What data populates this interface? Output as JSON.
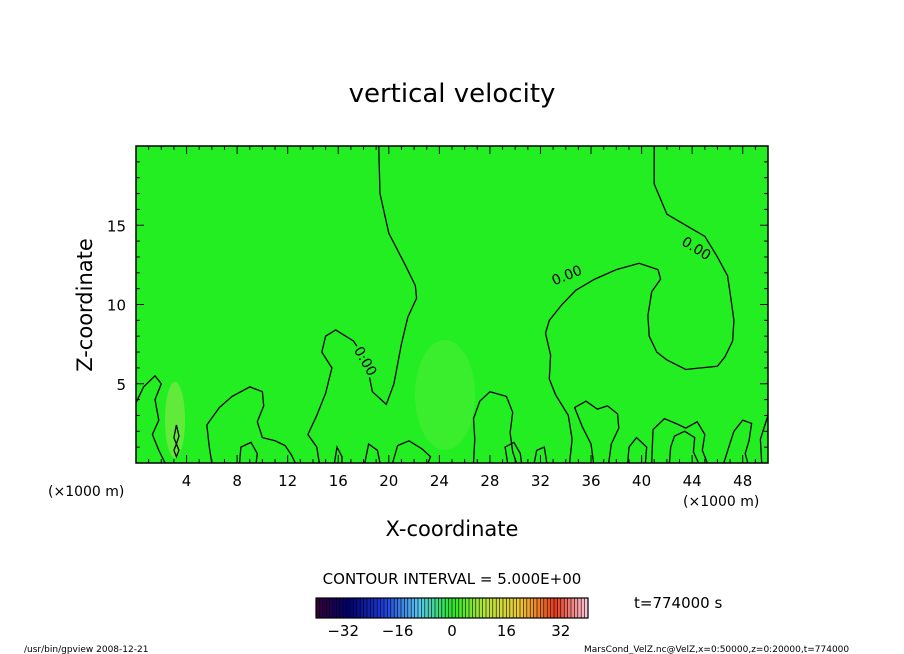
{
  "chart_data": {
    "type": "contour",
    "title": "vertical velocity",
    "xlabel": "X-coordinate",
    "ylabel": "Z-coordinate",
    "x_unit_label": "(×1000 m)",
    "y_unit_label": "(×1000 m)",
    "xlim": [
      0,
      50
    ],
    "ylim": [
      0,
      20
    ],
    "x_ticks": [
      4,
      8,
      12,
      16,
      20,
      24,
      28,
      32,
      36,
      40,
      44,
      48
    ],
    "y_ticks": [
      5,
      10,
      15
    ],
    "fill_color": "#22ee22",
    "contour_labels": [
      {
        "text": "0.00",
        "x": 18.1,
        "y": 6.4,
        "angle": 60
      },
      {
        "text": "0.00",
        "x": 34.1,
        "y": 11.8,
        "angle": -22
      },
      {
        "text": "0.00",
        "x": 44.3,
        "y": 13.5,
        "angle": 32
      }
    ],
    "contour_lines": [
      [
        [
          19.2,
          20
        ],
        [
          19.3,
          17
        ],
        [
          20,
          14.5
        ],
        [
          21.3,
          12.5
        ],
        [
          22.1,
          11.2
        ],
        [
          22.2,
          10.4
        ],
        [
          21.5,
          9.2
        ],
        [
          21,
          7.5
        ],
        [
          20.4,
          5
        ],
        [
          19.8,
          3.7
        ],
        [
          18.7,
          4.5
        ],
        [
          18.2,
          6.5
        ],
        [
          17.2,
          7.7
        ],
        [
          15.8,
          8.4
        ],
        [
          15,
          8
        ],
        [
          14.7,
          7
        ],
        [
          15.5,
          6
        ],
        [
          15,
          4.4
        ],
        [
          14.3,
          3
        ],
        [
          13.6,
          1.8
        ],
        [
          14.3,
          1
        ],
        [
          14.5,
          0
        ]
      ],
      [
        [
          41,
          20
        ],
        [
          41,
          17.6
        ],
        [
          42,
          15.7
        ],
        [
          43.5,
          15
        ],
        [
          45,
          14.3
        ],
        [
          46,
          13
        ],
        [
          46.8,
          11.8
        ],
        [
          47.1,
          10.2
        ],
        [
          47.3,
          9
        ],
        [
          47.2,
          7.7
        ],
        [
          46.6,
          6.7
        ],
        [
          46,
          6.1
        ],
        [
          44.7,
          6
        ],
        [
          43.5,
          5.9
        ],
        [
          42,
          6.5
        ],
        [
          41.2,
          7
        ],
        [
          40.6,
          8
        ],
        [
          40.5,
          9.3
        ],
        [
          40.8,
          10.8
        ],
        [
          41.5,
          11.6
        ],
        [
          41.3,
          12.2
        ],
        [
          39.8,
          12.6
        ],
        [
          38,
          12.2
        ],
        [
          36.3,
          11.6
        ],
        [
          34.8,
          10.9
        ],
        [
          33.7,
          10
        ],
        [
          32.7,
          9
        ],
        [
          32.4,
          8.2
        ],
        [
          32.8,
          6.8
        ],
        [
          32.7,
          5.3
        ],
        [
          33.2,
          4.3
        ],
        [
          34.2,
          3
        ],
        [
          34.5,
          1.5
        ],
        [
          34.3,
          0
        ]
      ],
      [
        [
          0,
          3.8
        ],
        [
          0.6,
          4.8
        ],
        [
          1.5,
          5.5
        ],
        [
          2,
          5
        ],
        [
          1.5,
          4
        ],
        [
          1.8,
          2.7
        ],
        [
          1.3,
          1.8
        ],
        [
          1.8,
          0.8
        ],
        [
          2.3,
          0
        ]
      ],
      [
        [
          6,
          0
        ],
        [
          5.8,
          1
        ],
        [
          5.6,
          2.4
        ],
        [
          6.6,
          3.5
        ],
        [
          7.6,
          4.2
        ],
        [
          9,
          4.8
        ],
        [
          10,
          4.5
        ],
        [
          10.1,
          3.6
        ],
        [
          9.6,
          2.6
        ],
        [
          10,
          1.6
        ],
        [
          11,
          1.4
        ],
        [
          11.8,
          1.1
        ],
        [
          12.3,
          0.5
        ],
        [
          12.6,
          0
        ]
      ],
      [
        [
          26.7,
          0
        ],
        [
          26.8,
          1.5
        ],
        [
          26.7,
          2.8
        ],
        [
          27.2,
          3.9
        ],
        [
          28,
          4.5
        ],
        [
          29.3,
          4.2
        ],
        [
          29.8,
          3.2
        ],
        [
          29.6,
          1.9
        ],
        [
          29.8,
          0.7
        ],
        [
          30.1,
          0
        ]
      ],
      [
        [
          36.2,
          0
        ],
        [
          36,
          1.2
        ],
        [
          35.3,
          2.3
        ],
        [
          34.7,
          3.5
        ],
        [
          35.6,
          3.9
        ],
        [
          36.5,
          3.4
        ],
        [
          37.3,
          3.6
        ],
        [
          38.1,
          3.1
        ],
        [
          38.2,
          2.2
        ],
        [
          37.6,
          1.2
        ],
        [
          37.4,
          0
        ]
      ],
      [
        [
          42.2,
          0
        ],
        [
          42.3,
          1
        ],
        [
          42.6,
          1.7
        ],
        [
          43.4,
          2
        ],
        [
          44.2,
          1.6
        ],
        [
          44.1,
          0.7
        ],
        [
          44.5,
          0
        ]
      ],
      [
        [
          46.5,
          0
        ],
        [
          46.9,
          1
        ],
        [
          47.3,
          2
        ],
        [
          48,
          2.7
        ],
        [
          48.7,
          2.5
        ],
        [
          48.5,
          1.4
        ],
        [
          48.2,
          0.6
        ],
        [
          48.4,
          0
        ]
      ],
      [
        [
          49.5,
          0
        ],
        [
          49.4,
          1.5
        ],
        [
          50,
          3
        ]
      ],
      [
        [
          18.1,
          0
        ],
        [
          18.4,
          1.2
        ],
        [
          19.1,
          0.8
        ],
        [
          19.3,
          0
        ]
      ],
      [
        [
          20.3,
          0
        ],
        [
          20.7,
          1.1
        ],
        [
          21.6,
          1.4
        ],
        [
          22.6,
          0.9
        ],
        [
          23.3,
          0.4
        ],
        [
          23.1,
          0
        ]
      ],
      [
        [
          29.4,
          0
        ],
        [
          29.2,
          1
        ],
        [
          29.9,
          1.3
        ],
        [
          30.4,
          0.6
        ],
        [
          30.5,
          0
        ]
      ],
      [
        [
          38.9,
          0
        ],
        [
          39,
          1
        ],
        [
          39.6,
          1.6
        ],
        [
          40.4,
          1
        ],
        [
          40.3,
          0
        ]
      ],
      [
        [
          40.8,
          0
        ],
        [
          40.9,
          2.1
        ],
        [
          41.8,
          2.8
        ],
        [
          42.7,
          2.5
        ],
        [
          43.5,
          2.2
        ],
        [
          44.4,
          2.6
        ],
        [
          45,
          1.8
        ],
        [
          44.8,
          0.8
        ],
        [
          45.2,
          0
        ]
      ],
      [
        [
          31.5,
          0
        ],
        [
          31.7,
          0.8
        ],
        [
          32.3,
          1
        ],
        [
          32.5,
          0
        ]
      ],
      [
        [
          3,
          1.6
        ],
        [
          3.2,
          2.4
        ],
        [
          3.4,
          1.7
        ],
        [
          3.2,
          1.2
        ],
        [
          3,
          1.6
        ]
      ],
      [
        [
          3,
          0.8
        ],
        [
          3.2,
          1.2
        ],
        [
          3.4,
          0.8
        ],
        [
          3.2,
          0.4
        ],
        [
          3,
          0.8
        ]
      ],
      [
        [
          8.2,
          0
        ],
        [
          8.3,
          1
        ],
        [
          9.1,
          1.3
        ],
        [
          9.6,
          0.6
        ],
        [
          9.5,
          0
        ]
      ],
      [
        [
          15.7,
          0
        ],
        [
          15.9,
          1
        ],
        [
          16.3,
          0.4
        ],
        [
          16.3,
          0
        ]
      ]
    ],
    "colorbar": {
      "label": "CONTOUR INTERVAL = 5.000E+00",
      "range": [
        -40,
        40
      ],
      "ticks": [
        -32,
        -16,
        0,
        16,
        32
      ],
      "time_label": "t=774000 s"
    }
  },
  "footer": {
    "left": "/usr/bin/gpview  2008-12-21",
    "right": "MarsCond_VelZ.nc@VelZ,x=0:50000,z=0:20000,t=774000"
  }
}
